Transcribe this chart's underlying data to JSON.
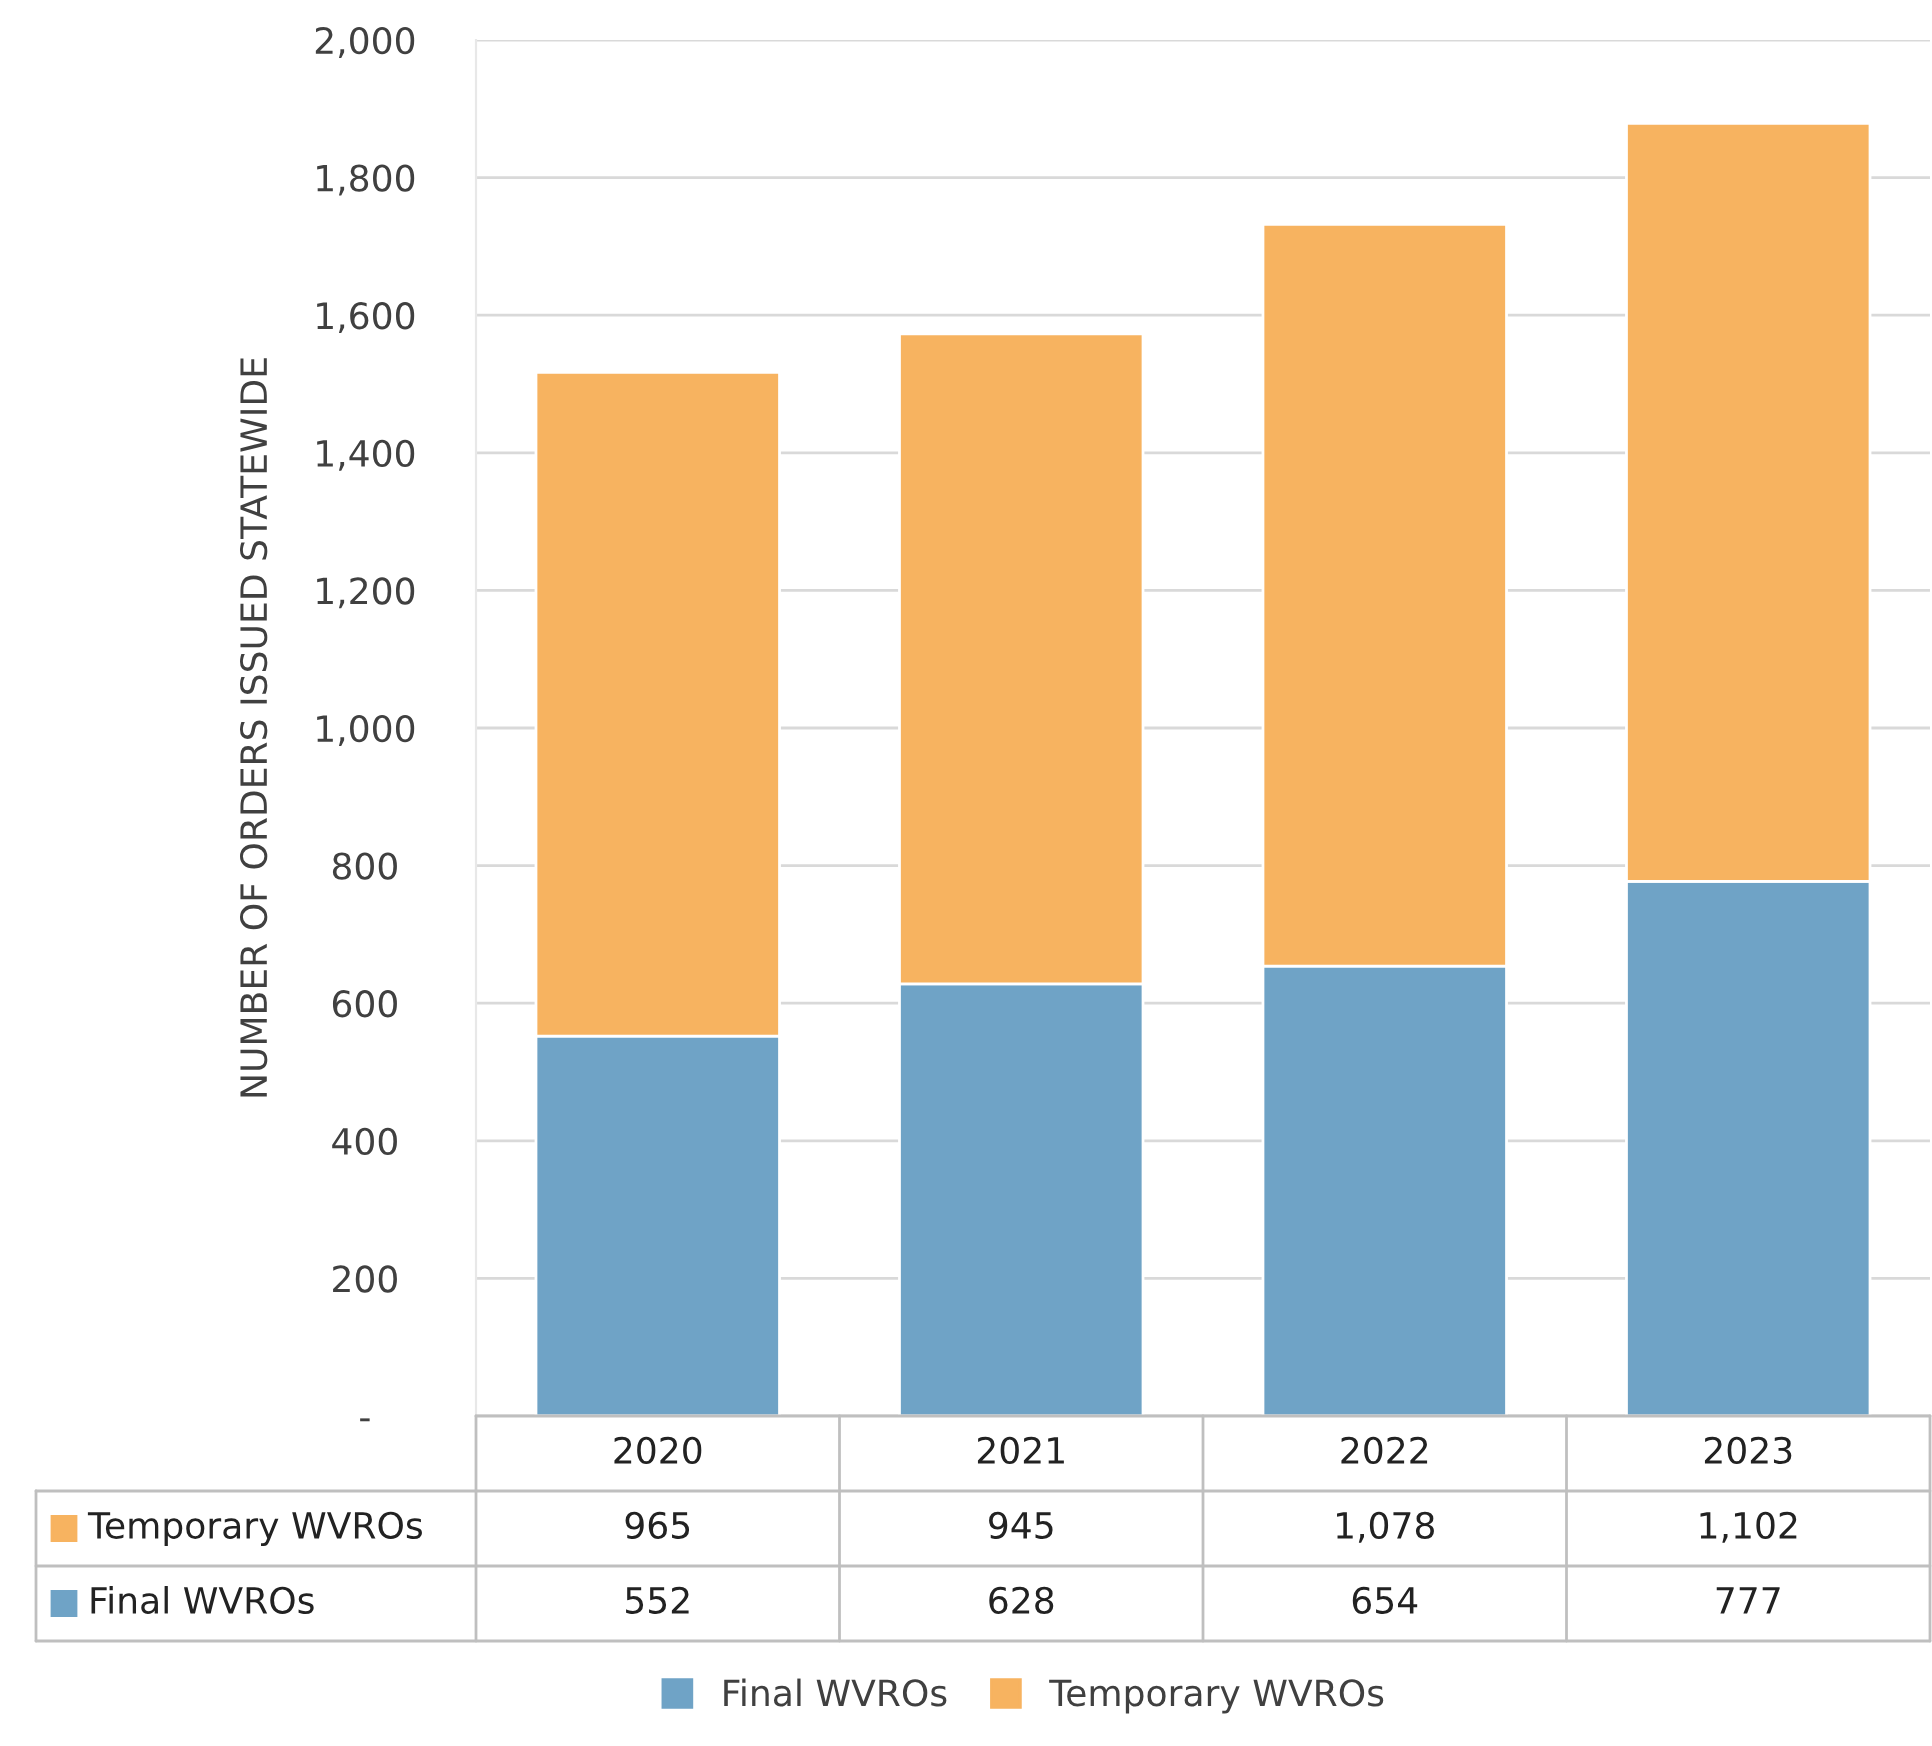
{
  "chart_data": {
    "type": "bar",
    "stacked": true,
    "categories": [
      "2020",
      "2021",
      "2022",
      "2023"
    ],
    "ylabel": "NUMBER OF ORDERS ISSUED STATEWIDE",
    "series": [
      {
        "name": "Final WVROs",
        "color": "#6fa3c6",
        "values": [
          552,
          628,
          654,
          777
        ],
        "value_labels": [
          "552",
          "628",
          "654",
          "777"
        ]
      },
      {
        "name": "Temporary WVROs",
        "color": "#f7b360",
        "values": [
          965,
          945,
          1078,
          1102
        ],
        "value_labels": [
          "965",
          "945",
          "1,078",
          "1,102"
        ]
      }
    ],
    "ylim": [
      0,
      2000
    ],
    "yticks": [
      {
        "value": 0,
        "label": "-"
      },
      200,
      400,
      600,
      800,
      {
        "value": 1000,
        "label": "1,000"
      },
      {
        "value": 1200,
        "label": "1,200"
      },
      {
        "value": 1400,
        "label": "1,400"
      },
      {
        "value": 1600,
        "label": "1,600"
      },
      {
        "value": 1800,
        "label": "1,800"
      },
      {
        "value": 2000,
        "label": "2,000"
      }
    ],
    "grid": "y",
    "legend": "bottom"
  }
}
